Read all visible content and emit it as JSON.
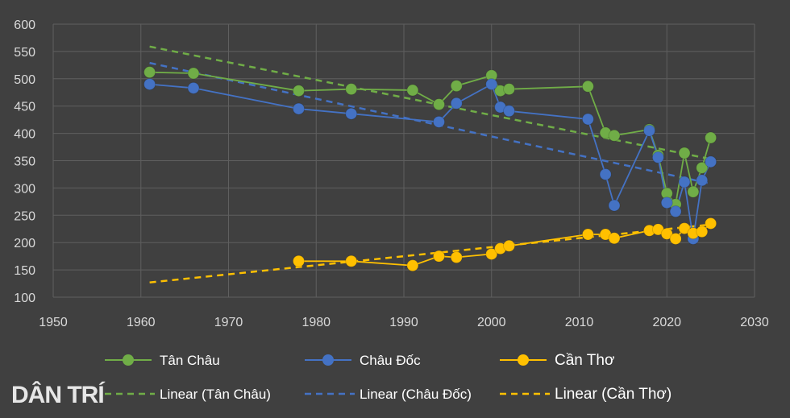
{
  "watermark": "DÂN TRÍ",
  "chart_data": {
    "type": "line",
    "title": "",
    "xlabel": "",
    "ylabel": "",
    "xlim": [
      1950,
      2030
    ],
    "ylim": [
      100,
      600
    ],
    "x_ticks": [
      1950,
      1960,
      1970,
      1980,
      1990,
      2000,
      2010,
      2020,
      2030
    ],
    "y_ticks": [
      100,
      150,
      200,
      250,
      300,
      350,
      400,
      450,
      500,
      550,
      600
    ],
    "grid": true,
    "legend_position": "bottom",
    "series": [
      {
        "name": "Tân Châu",
        "color": "#70ad47",
        "points": [
          [
            1961,
            512
          ],
          [
            1966,
            510
          ],
          [
            1978,
            478
          ],
          [
            1984,
            481
          ],
          [
            1991,
            479
          ],
          [
            1994,
            453
          ],
          [
            1996,
            487
          ],
          [
            2000,
            506
          ],
          [
            2001,
            478
          ],
          [
            2002,
            481
          ],
          [
            2011,
            486
          ],
          [
            2013,
            401
          ],
          [
            2014,
            396
          ],
          [
            2018,
            407
          ],
          [
            2019,
            360
          ],
          [
            2020,
            290
          ],
          [
            2021,
            270
          ],
          [
            2022,
            364
          ],
          [
            2023,
            293
          ],
          [
            2024,
            337
          ],
          [
            2025,
            392
          ]
        ]
      },
      {
        "name": "Châu Đốc",
        "color": "#4472c4",
        "points": [
          [
            1961,
            490
          ],
          [
            1966,
            483
          ],
          [
            1978,
            445
          ],
          [
            1984,
            436
          ],
          [
            1994,
            421
          ],
          [
            1996,
            455
          ],
          [
            2000,
            490
          ],
          [
            2001,
            448
          ],
          [
            2002,
            441
          ],
          [
            2011,
            426
          ],
          [
            2013,
            325
          ],
          [
            2014,
            268
          ],
          [
            2018,
            405
          ],
          [
            2019,
            356
          ],
          [
            2020,
            273
          ],
          [
            2021,
            257
          ],
          [
            2022,
            311
          ],
          [
            2023,
            207
          ],
          [
            2024,
            314
          ],
          [
            2025,
            348
          ]
        ]
      },
      {
        "name": "Cần Thơ",
        "color": "#ffc000",
        "points": [
          [
            1978,
            166
          ],
          [
            1984,
            166
          ],
          [
            1991,
            158
          ],
          [
            1994,
            175
          ],
          [
            1996,
            173
          ],
          [
            2000,
            179
          ],
          [
            2001,
            189
          ],
          [
            2002,
            194
          ],
          [
            2011,
            215
          ],
          [
            2013,
            215
          ],
          [
            2014,
            208
          ],
          [
            2018,
            222
          ],
          [
            2019,
            224
          ],
          [
            2020,
            216
          ],
          [
            2021,
            207
          ],
          [
            2022,
            226
          ],
          [
            2023,
            217
          ],
          [
            2024,
            220
          ],
          [
            2025,
            235
          ]
        ]
      }
    ],
    "trendlines": [
      {
        "name": "Linear (Tân Châu)",
        "color": "#70ad47",
        "from": [
          1961,
          559
        ],
        "to": [
          2025,
          353
        ]
      },
      {
        "name": "Linear (Châu Đốc)",
        "color": "#4472c4",
        "from": [
          1961,
          529
        ],
        "to": [
          2025,
          308
        ]
      },
      {
        "name": "Linear (Cần Thơ)",
        "color": "#ffc000",
        "from": [
          1961,
          127
        ],
        "to": [
          2025,
          233
        ]
      }
    ]
  }
}
